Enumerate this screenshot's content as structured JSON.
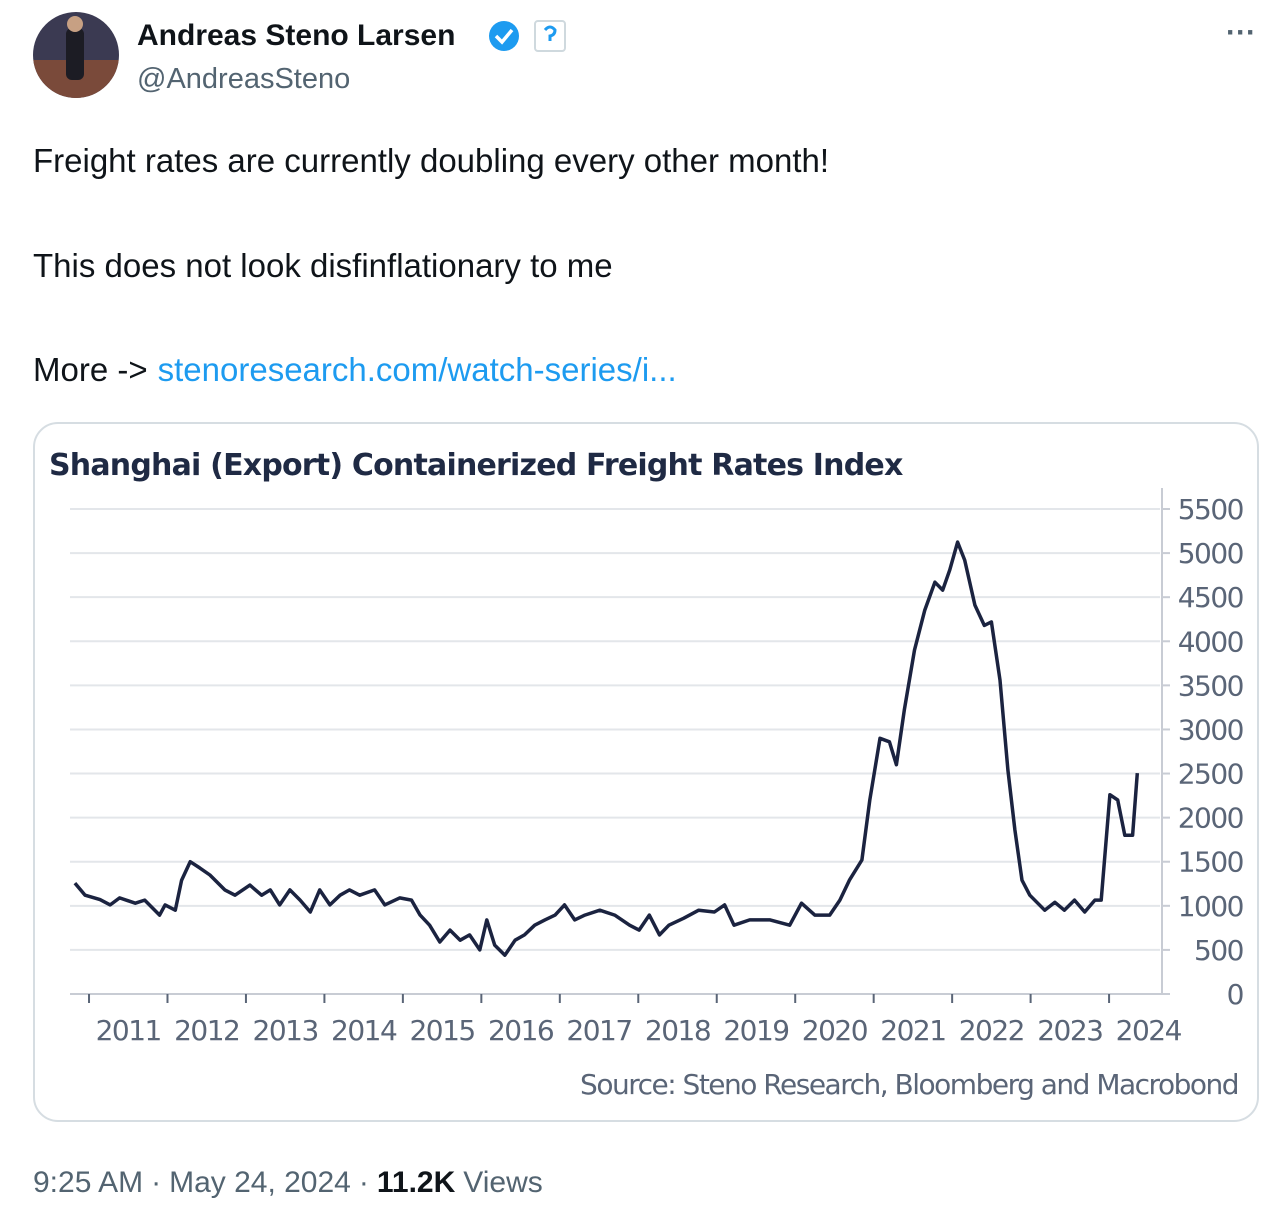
{
  "tweet": {
    "author": "Andreas Steno Larsen",
    "handle": "@AndreasSteno",
    "menu": "···",
    "lines": [
      "Freight rates are currently doubling every other month!",
      "This does not look disfinflationary to me"
    ],
    "more_label": "More ->",
    "link": "stenoresearch.com/watch-series/i...",
    "time": "9:25 AM",
    "separator": "·",
    "date": "May 24, 2024",
    "views_count": "11.2K",
    "views_label": "Views"
  },
  "chart_data": {
    "type": "line",
    "title": "Shanghai (Export) Containerized Freight Rates Index",
    "source": "Source: Steno Research, Bloomberg and Macrobond",
    "color": "#1b2340",
    "grid": true,
    "x": [
      2010.82,
      2010.95,
      2011.14,
      2011.27,
      2011.39,
      2011.59,
      2011.71,
      2011.9,
      2011.97,
      2012.1,
      2012.18,
      2012.29,
      2012.41,
      2012.54,
      2012.73,
      2012.86,
      2013.05,
      2013.2,
      2013.31,
      2013.43,
      2013.56,
      2013.69,
      2013.82,
      2013.94,
      2014.07,
      2014.2,
      2014.32,
      2014.45,
      2014.64,
      2014.77,
      2014.96,
      2015.11,
      2015.22,
      2015.34,
      2015.47,
      2015.6,
      2015.73,
      2015.85,
      2015.98,
      2016.07,
      2016.17,
      2016.3,
      2016.43,
      2016.55,
      2016.68,
      2016.81,
      2016.94,
      2017.06,
      2017.19,
      2017.32,
      2017.51,
      2017.7,
      2017.89,
      2018.01,
      2018.14,
      2018.27,
      2018.39,
      2018.58,
      2018.77,
      2018.97,
      2019.1,
      2019.22,
      2019.42,
      2019.68,
      2019.93,
      2020.08,
      2020.25,
      2020.44,
      2020.57,
      2020.69,
      2020.85,
      2020.95,
      2021.08,
      2021.2,
      2021.29,
      2021.39,
      2021.52,
      2021.65,
      2021.78,
      2021.88,
      2021.97,
      2022.07,
      2022.16,
      2022.29,
      2022.41,
      2022.5,
      2022.61,
      2022.71,
      2022.8,
      2022.89,
      2022.99,
      2023.18,
      2023.31,
      2023.43,
      2023.56,
      2023.69,
      2023.82,
      2023.9,
      2024.01,
      2024.11,
      2024.2,
      2024.3,
      2024.36
    ],
    "values": [
      1258,
      1120,
      1070,
      1010,
      1090,
      1030,
      1065,
      895,
      1010,
      950,
      1290,
      1500,
      1430,
      1350,
      1180,
      1120,
      1235,
      1120,
      1180,
      1010,
      1180,
      1065,
      930,
      1180,
      1010,
      1120,
      1180,
      1120,
      1180,
      1010,
      1090,
      1065,
      895,
      780,
      590,
      725,
      610,
      670,
      500,
      840,
      555,
      440,
      610,
      670,
      780,
      840,
      895,
      1010,
      840,
      895,
      950,
      895,
      780,
      725,
      895,
      670,
      780,
      860,
      950,
      930,
      1010,
      780,
      840,
      840,
      780,
      1030,
      895,
      895,
      1065,
      1290,
      1520,
      2200,
      2900,
      2860,
      2600,
      3220,
      3900,
      4350,
      4670,
      4580,
      4810,
      5125,
      4920,
      4410,
      4180,
      4220,
      3560,
      2540,
      1860,
      1290,
      1120,
      950,
      1040,
      950,
      1065,
      930,
      1065,
      1065,
      2260,
      2200,
      1800,
      1800,
      2505
    ],
    "xlim": [
      2010.75,
      2024.7
    ],
    "xticks": [
      2011,
      2012,
      2013,
      2014,
      2015,
      2016,
      2017,
      2018,
      2019,
      2020,
      2021,
      2022,
      2023,
      2024
    ],
    "ylim": [
      0,
      5500
    ],
    "yticks": [
      0,
      500,
      1000,
      1500,
      2000,
      2500,
      3000,
      3500,
      4000,
      4500,
      5000,
      5500
    ]
  }
}
